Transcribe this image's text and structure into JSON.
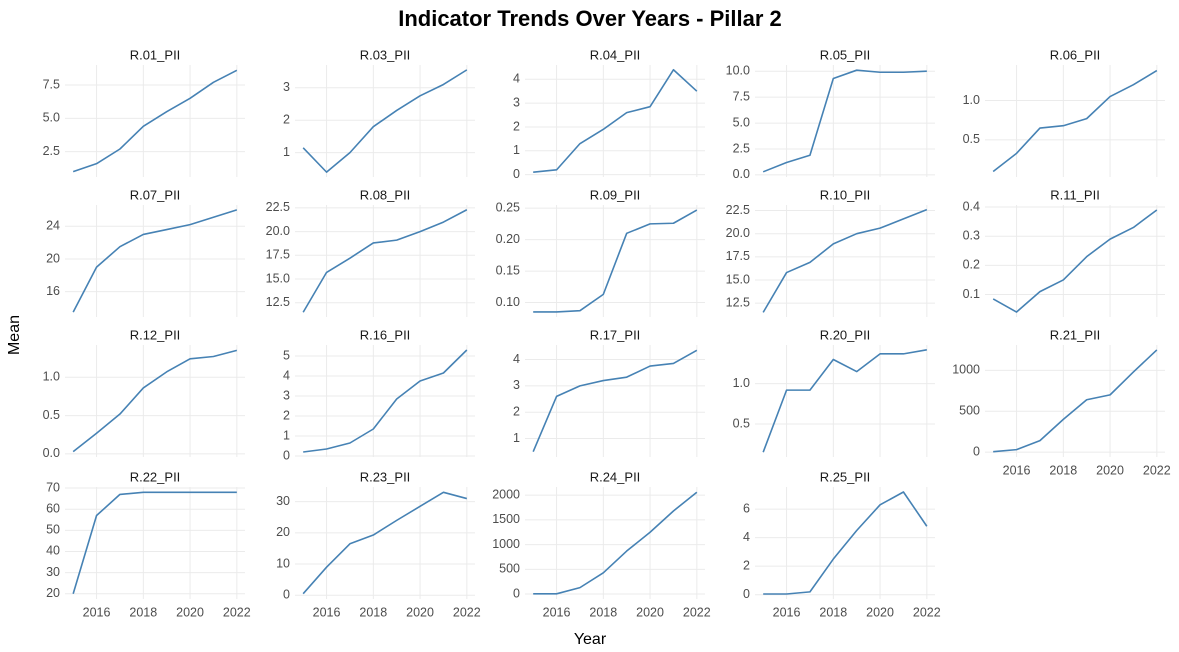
{
  "title": "Indicator Trends Over Years - Pillar 2",
  "x_label": "Year",
  "y_label": "Mean",
  "chart_data": [
    {
      "type": "line",
      "title": "R.01_PII",
      "x": [
        2015,
        2016,
        2017,
        2018,
        2019,
        2020,
        2021,
        2022
      ],
      "values": [
        1.0,
        1.6,
        2.7,
        4.4,
        5.5,
        6.5,
        7.7,
        8.6
      ],
      "color": "#4682b4",
      "xlim": [
        2014.65,
        2022.35
      ],
      "xticks": [
        2016,
        2018,
        2020,
        2022
      ],
      "ylim": [
        0.6,
        9.0
      ],
      "yticks": [
        2.5,
        {
          "value": 5,
          "label": "5.0"
        },
        7.5
      ],
      "grid": true
    },
    {
      "type": "line",
      "title": "R.03_PII",
      "x": [
        2015,
        2016,
        2017,
        2018,
        2019,
        2020,
        2021,
        2022
      ],
      "values": [
        1.15,
        0.4,
        1.0,
        1.8,
        2.3,
        2.75,
        3.1,
        3.55
      ],
      "color": "#4682b4",
      "xlim": [
        2014.65,
        2022.35
      ],
      "xticks": [
        2016,
        2018,
        2020,
        2022
      ],
      "ylim": [
        0.25,
        3.7
      ],
      "yticks": [
        1,
        2,
        3
      ],
      "grid": true
    },
    {
      "type": "line",
      "title": "R.04_PII",
      "x": [
        2015,
        2016,
        2017,
        2018,
        2019,
        2020,
        2021,
        2022
      ],
      "values": [
        0.1,
        0.2,
        1.3,
        1.9,
        2.6,
        2.85,
        4.4,
        3.5
      ],
      "color": "#4682b4",
      "xlim": [
        2014.65,
        2022.35
      ],
      "xticks": [
        2016,
        2018,
        2020,
        2022
      ],
      "ylim": [
        -0.1,
        4.6
      ],
      "yticks": [
        0,
        1,
        2,
        3,
        4
      ],
      "grid": true
    },
    {
      "type": "line",
      "title": "R.05_PII",
      "x": [
        2015,
        2016,
        2017,
        2018,
        2019,
        2020,
        2021,
        2022
      ],
      "values": [
        0.3,
        1.2,
        1.9,
        9.3,
        10.1,
        9.9,
        9.9,
        10.0
      ],
      "color": "#4682b4",
      "xlim": [
        2014.65,
        2022.35
      ],
      "xticks": [
        2016,
        2018,
        2020,
        2022
      ],
      "ylim": [
        -0.2,
        10.6
      ],
      "yticks": [
        {
          "value": 0,
          "label": "0.0"
        },
        2.5,
        {
          "value": 5,
          "label": "5.0"
        },
        7.5,
        {
          "value": 10,
          "label": "10.0"
        }
      ],
      "grid": true
    },
    {
      "type": "line",
      "title": "R.06_PII",
      "x": [
        2015,
        2016,
        2017,
        2018,
        2019,
        2020,
        2021,
        2022
      ],
      "values": [
        0.1,
        0.33,
        0.65,
        0.68,
        0.77,
        1.05,
        1.2,
        1.38
      ],
      "color": "#4682b4",
      "xlim": [
        2014.65,
        2022.35
      ],
      "xticks": [
        2016,
        2018,
        2020,
        2022
      ],
      "ylim": [
        0.03,
        1.45
      ],
      "yticks": [
        0.5,
        {
          "value": 1,
          "label": "1.0"
        }
      ],
      "grid": true
    },
    {
      "type": "line",
      "title": "R.07_PII",
      "x": [
        2015,
        2016,
        2017,
        2018,
        2019,
        2020,
        2021,
        2022
      ],
      "values": [
        13.5,
        19,
        21.5,
        23,
        23.6,
        24.2,
        25.1,
        26
      ],
      "color": "#4682b4",
      "xlim": [
        2014.65,
        2022.35
      ],
      "xticks": [
        2016,
        2018,
        2020,
        2022
      ],
      "ylim": [
        12.9,
        26.6
      ],
      "yticks": [
        16,
        20,
        24
      ],
      "grid": true
    },
    {
      "type": "line",
      "title": "R.08_PII",
      "x": [
        2015,
        2016,
        2017,
        2018,
        2019,
        2020,
        2021,
        2022
      ],
      "values": [
        11.5,
        15.7,
        17.2,
        18.8,
        19.1,
        20,
        21,
        22.3
      ],
      "color": "#4682b4",
      "xlim": [
        2014.65,
        2022.35
      ],
      "xticks": [
        2016,
        2018,
        2020,
        2022
      ],
      "ylim": [
        11,
        22.8
      ],
      "yticks": [
        12.5,
        {
          "value": 15,
          "label": "15.0"
        },
        17.5,
        {
          "value": 20,
          "label": "20.0"
        },
        22.5
      ],
      "grid": true
    },
    {
      "type": "line",
      "title": "R.09_PII",
      "x": [
        2015,
        2016,
        2017,
        2018,
        2019,
        2020,
        2021,
        2022
      ],
      "values": [
        0.085,
        0.085,
        0.087,
        0.113,
        0.21,
        0.225,
        0.226,
        0.247
      ],
      "color": "#4682b4",
      "xlim": [
        2014.65,
        2022.35
      ],
      "xticks": [
        2016,
        2018,
        2020,
        2022
      ],
      "ylim": [
        0.077,
        0.255
      ],
      "yticks": [
        {
          "value": 0.1,
          "label": "0.10"
        },
        0.15,
        {
          "value": 0.2,
          "label": "0.20"
        },
        0.25
      ],
      "grid": true
    },
    {
      "type": "line",
      "title": "R.10_PII",
      "x": [
        2015,
        2016,
        2017,
        2018,
        2019,
        2020,
        2021,
        2022
      ],
      "values": [
        11.5,
        15.8,
        16.9,
        18.9,
        20,
        20.6,
        21.6,
        22.6
      ],
      "color": "#4682b4",
      "xlim": [
        2014.65,
        2022.35
      ],
      "xticks": [
        2016,
        2018,
        2020,
        2022
      ],
      "ylim": [
        11,
        23.1
      ],
      "yticks": [
        12.5,
        {
          "value": 15,
          "label": "15.0"
        },
        17.5,
        {
          "value": 20,
          "label": "20.0"
        },
        22.5
      ],
      "grid": true
    },
    {
      "type": "line",
      "title": "R.11_PII",
      "x": [
        2015,
        2016,
        2017,
        2018,
        2019,
        2020,
        2021,
        2022
      ],
      "values": [
        0.085,
        0.04,
        0.11,
        0.15,
        0.23,
        0.29,
        0.33,
        0.39
      ],
      "color": "#4682b4",
      "xlim": [
        2014.65,
        2022.35
      ],
      "xticks": [
        2016,
        2018,
        2020,
        2022
      ],
      "ylim": [
        0.023,
        0.407
      ],
      "yticks": [
        0.1,
        0.2,
        0.3,
        0.4
      ],
      "grid": true
    },
    {
      "type": "line",
      "title": "R.12_PII",
      "x": [
        2015,
        2016,
        2017,
        2018,
        2019,
        2020,
        2021,
        2022
      ],
      "values": [
        0.03,
        0.27,
        0.52,
        0.86,
        1.07,
        1.24,
        1.27,
        1.35
      ],
      "color": "#4682b4",
      "xlim": [
        2014.65,
        2022.35
      ],
      "xticks": [
        2016,
        2018,
        2020,
        2022
      ],
      "ylim": [
        -0.04,
        1.42
      ],
      "yticks": [
        {
          "value": 0,
          "label": "0.0"
        },
        0.5,
        {
          "value": 1,
          "label": "1.0"
        }
      ],
      "grid": true
    },
    {
      "type": "line",
      "title": "R.16_PII",
      "x": [
        2015,
        2016,
        2017,
        2018,
        2019,
        2020,
        2021,
        2022
      ],
      "values": [
        0.2,
        0.35,
        0.65,
        1.35,
        2.85,
        3.75,
        4.15,
        5.3
      ],
      "color": "#4682b4",
      "xlim": [
        2014.65,
        2022.35
      ],
      "xticks": [
        2016,
        2018,
        2020,
        2022
      ],
      "ylim": [
        -0.05,
        5.55
      ],
      "yticks": [
        0,
        1,
        2,
        3,
        4,
        5
      ],
      "grid": true
    },
    {
      "type": "line",
      "title": "R.17_PII",
      "x": [
        2015,
        2016,
        2017,
        2018,
        2019,
        2020,
        2021,
        2022
      ],
      "values": [
        0.5,
        2.6,
        3.0,
        3.2,
        3.33,
        3.75,
        3.85,
        4.35
      ],
      "color": "#4682b4",
      "xlim": [
        2014.65,
        2022.35
      ],
      "xticks": [
        2016,
        2018,
        2020,
        2022
      ],
      "ylim": [
        0.3,
        4.55
      ],
      "yticks": [
        1,
        2,
        3,
        4
      ],
      "grid": true
    },
    {
      "type": "line",
      "title": "R.20_PII",
      "x": [
        2015,
        2016,
        2017,
        2018,
        2019,
        2020,
        2021,
        2022
      ],
      "values": [
        0.15,
        0.92,
        0.92,
        1.3,
        1.15,
        1.37,
        1.37,
        1.42
      ],
      "color": "#4682b4",
      "xlim": [
        2014.65,
        2022.35
      ],
      "xticks": [
        2016,
        2018,
        2020,
        2022
      ],
      "ylim": [
        0.09,
        1.48
      ],
      "yticks": [
        0.5,
        {
          "value": 1,
          "label": "1.0"
        }
      ],
      "grid": true
    },
    {
      "type": "line",
      "title": "R.21_PII",
      "x": [
        2015,
        2016,
        2017,
        2018,
        2019,
        2020,
        2021,
        2022
      ],
      "values": [
        5,
        30,
        140,
        400,
        640,
        700,
        980,
        1250
      ],
      "color": "#4682b4",
      "xlim": [
        2014.65,
        2022.35
      ],
      "xticks": [
        2016,
        2018,
        2020,
        2022
      ],
      "ylim": [
        -60,
        1310
      ],
      "yticks": [
        0,
        500,
        1000
      ],
      "grid": true
    },
    {
      "type": "line",
      "title": "R.22_PII",
      "x": [
        2015,
        2016,
        2017,
        2018,
        2019,
        2020,
        2021,
        2022
      ],
      "values": [
        20,
        57,
        67,
        68,
        68,
        68,
        68,
        68
      ],
      "color": "#4682b4",
      "xlim": [
        2014.65,
        2022.35
      ],
      "xticks": [
        2016,
        2018,
        2020,
        2022
      ],
      "ylim": [
        17.5,
        70.5
      ],
      "yticks": [
        20,
        30,
        40,
        50,
        60,
        70
      ],
      "grid": true
    },
    {
      "type": "line",
      "title": "R.23_PII",
      "x": [
        2015,
        2016,
        2017,
        2018,
        2019,
        2020,
        2021,
        2022
      ],
      "values": [
        0.5,
        9,
        16.5,
        19.3,
        24,
        28.5,
        33,
        31
      ],
      "color": "#4682b4",
      "xlim": [
        2014.65,
        2022.35
      ],
      "xticks": [
        2016,
        2018,
        2020,
        2022
      ],
      "ylim": [
        -1.2,
        34.7
      ],
      "yticks": [
        0,
        10,
        20,
        30
      ],
      "grid": true
    },
    {
      "type": "line",
      "title": "R.24_PII",
      "x": [
        2015,
        2016,
        2017,
        2018,
        2019,
        2020,
        2021,
        2022
      ],
      "values": [
        5,
        5,
        130,
        430,
        870,
        1250,
        1680,
        2060
      ],
      "color": "#4682b4",
      "xlim": [
        2014.65,
        2022.35
      ],
      "xticks": [
        2016,
        2018,
        2020,
        2022
      ],
      "ylim": [
        -100,
        2165
      ],
      "yticks": [
        0,
        500,
        1000,
        1500,
        2000
      ],
      "grid": true
    },
    {
      "type": "line",
      "title": "R.25_PII",
      "x": [
        2015,
        2016,
        2017,
        2018,
        2019,
        2020,
        2021,
        2022
      ],
      "values": [
        0.05,
        0.05,
        0.2,
        2.5,
        4.5,
        6.3,
        7.2,
        4.8
      ],
      "color": "#4682b4",
      "xlim": [
        2014.65,
        2022.35
      ],
      "xticks": [
        2016,
        2018,
        2020,
        2022
      ],
      "ylim": [
        -0.3,
        7.55
      ],
      "yticks": [
        0,
        2,
        4,
        6
      ],
      "grid": true
    }
  ]
}
